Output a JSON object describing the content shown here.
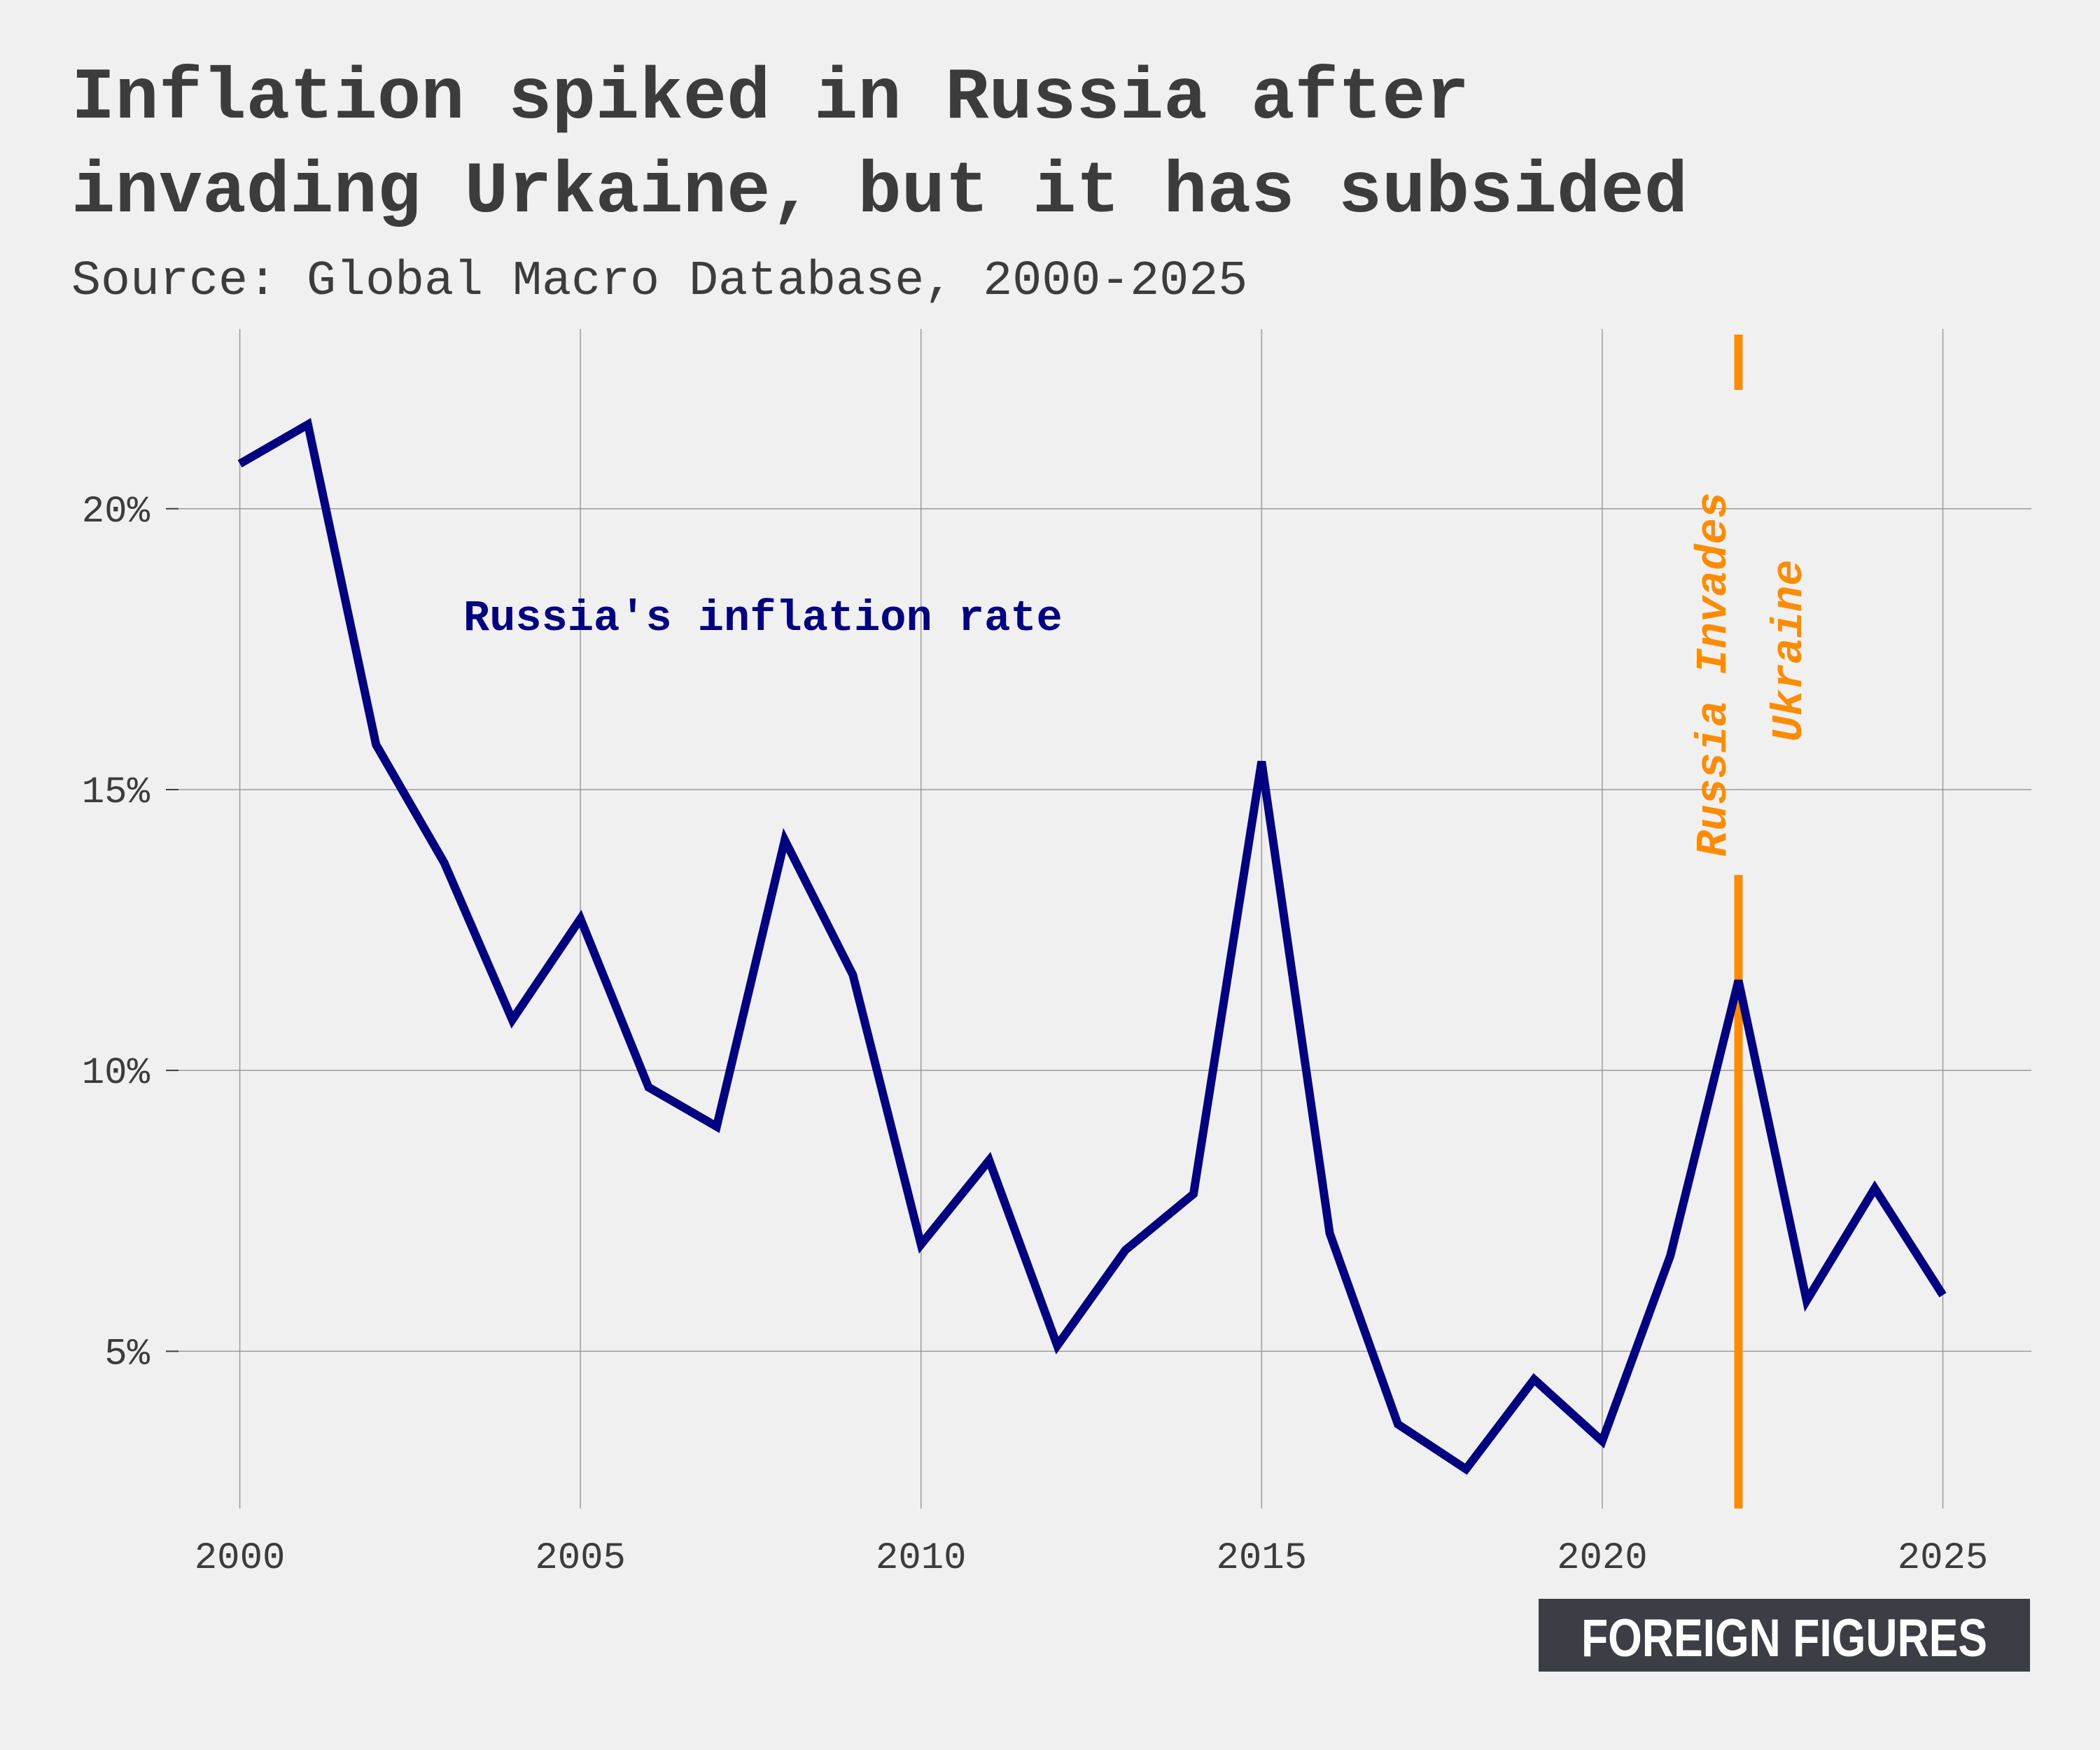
{
  "chart_data": {
    "type": "line",
    "title": "Inflation spiked in Russia after invading Urkaine, but it has subsided",
    "title_lines": [
      "Inflation spiked in Russia after",
      "invading Urkaine, but it has subsided"
    ],
    "subtitle": "Source: Global Macro Database, 2000-2025",
    "xlabel": "",
    "ylabel": "",
    "xlim": [
      1999.1,
      2026.3
    ],
    "ylim": [
      2.2,
      23.2
    ],
    "x_ticks": [
      2000,
      2005,
      2010,
      2015,
      2020,
      2025
    ],
    "y_ticks": [
      5,
      10,
      15,
      20
    ],
    "y_tick_labels": [
      "5%",
      "10%",
      "15%",
      "20%"
    ],
    "grid": true,
    "series": [
      {
        "name": "Russia's inflation rate",
        "color": "#000080",
        "x": [
          2000,
          2001,
          2002,
          2003,
          2004,
          2005,
          2006,
          2007,
          2008,
          2009,
          2010,
          2011,
          2012,
          2013,
          2014,
          2015,
          2016,
          2017,
          2018,
          2019,
          2020,
          2021,
          2022,
          2023,
          2024,
          2025
        ],
        "y": [
          20.8,
          21.5,
          15.8,
          13.7,
          10.9,
          12.7,
          9.7,
          9.0,
          14.1,
          11.7,
          6.9,
          8.4,
          5.1,
          6.8,
          7.8,
          15.5,
          7.1,
          3.7,
          2.9,
          4.5,
          3.4,
          6.7,
          11.6,
          5.9,
          7.9,
          6.0
        ]
      }
    ],
    "annotations": [
      {
        "type": "vline",
        "x": 2022,
        "color": "#ff8c00",
        "text_lines": [
          "Russia Invades",
          "Ukraine"
        ]
      }
    ]
  },
  "branding": {
    "logo_text": "FOREIGN FIGURES"
  }
}
